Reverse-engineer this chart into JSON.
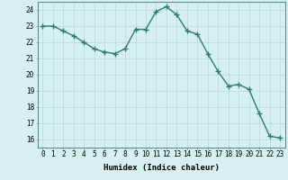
{
  "x": [
    0,
    1,
    2,
    3,
    4,
    5,
    6,
    7,
    8,
    9,
    10,
    11,
    12,
    13,
    14,
    15,
    16,
    17,
    18,
    19,
    20,
    21,
    22,
    23
  ],
  "y": [
    23.0,
    23.0,
    22.7,
    22.4,
    22.0,
    21.6,
    21.4,
    21.3,
    21.6,
    22.8,
    22.8,
    23.9,
    24.2,
    23.7,
    22.7,
    22.5,
    21.3,
    20.2,
    19.3,
    19.4,
    19.1,
    17.6,
    16.2,
    16.1
  ],
  "line_color": "#2e7d6e",
  "marker": "D",
  "marker_size": 2.2,
  "bg_color": "#d6f0f0",
  "grid_color": "#b8d8d8",
  "xlabel": "Humidex (Indice chaleur)",
  "xlim": [
    -0.5,
    23.5
  ],
  "ylim": [
    15.5,
    24.5
  ],
  "yticks": [
    16,
    17,
    18,
    19,
    20,
    21,
    22,
    23,
    24
  ],
  "xticks": [
    0,
    1,
    2,
    3,
    4,
    5,
    6,
    7,
    8,
    9,
    10,
    11,
    12,
    13,
    14,
    15,
    16,
    17,
    18,
    19,
    20,
    21,
    22,
    23
  ],
  "tick_fontsize": 5.5,
  "label_fontsize": 6.5,
  "line_width": 1.0
}
